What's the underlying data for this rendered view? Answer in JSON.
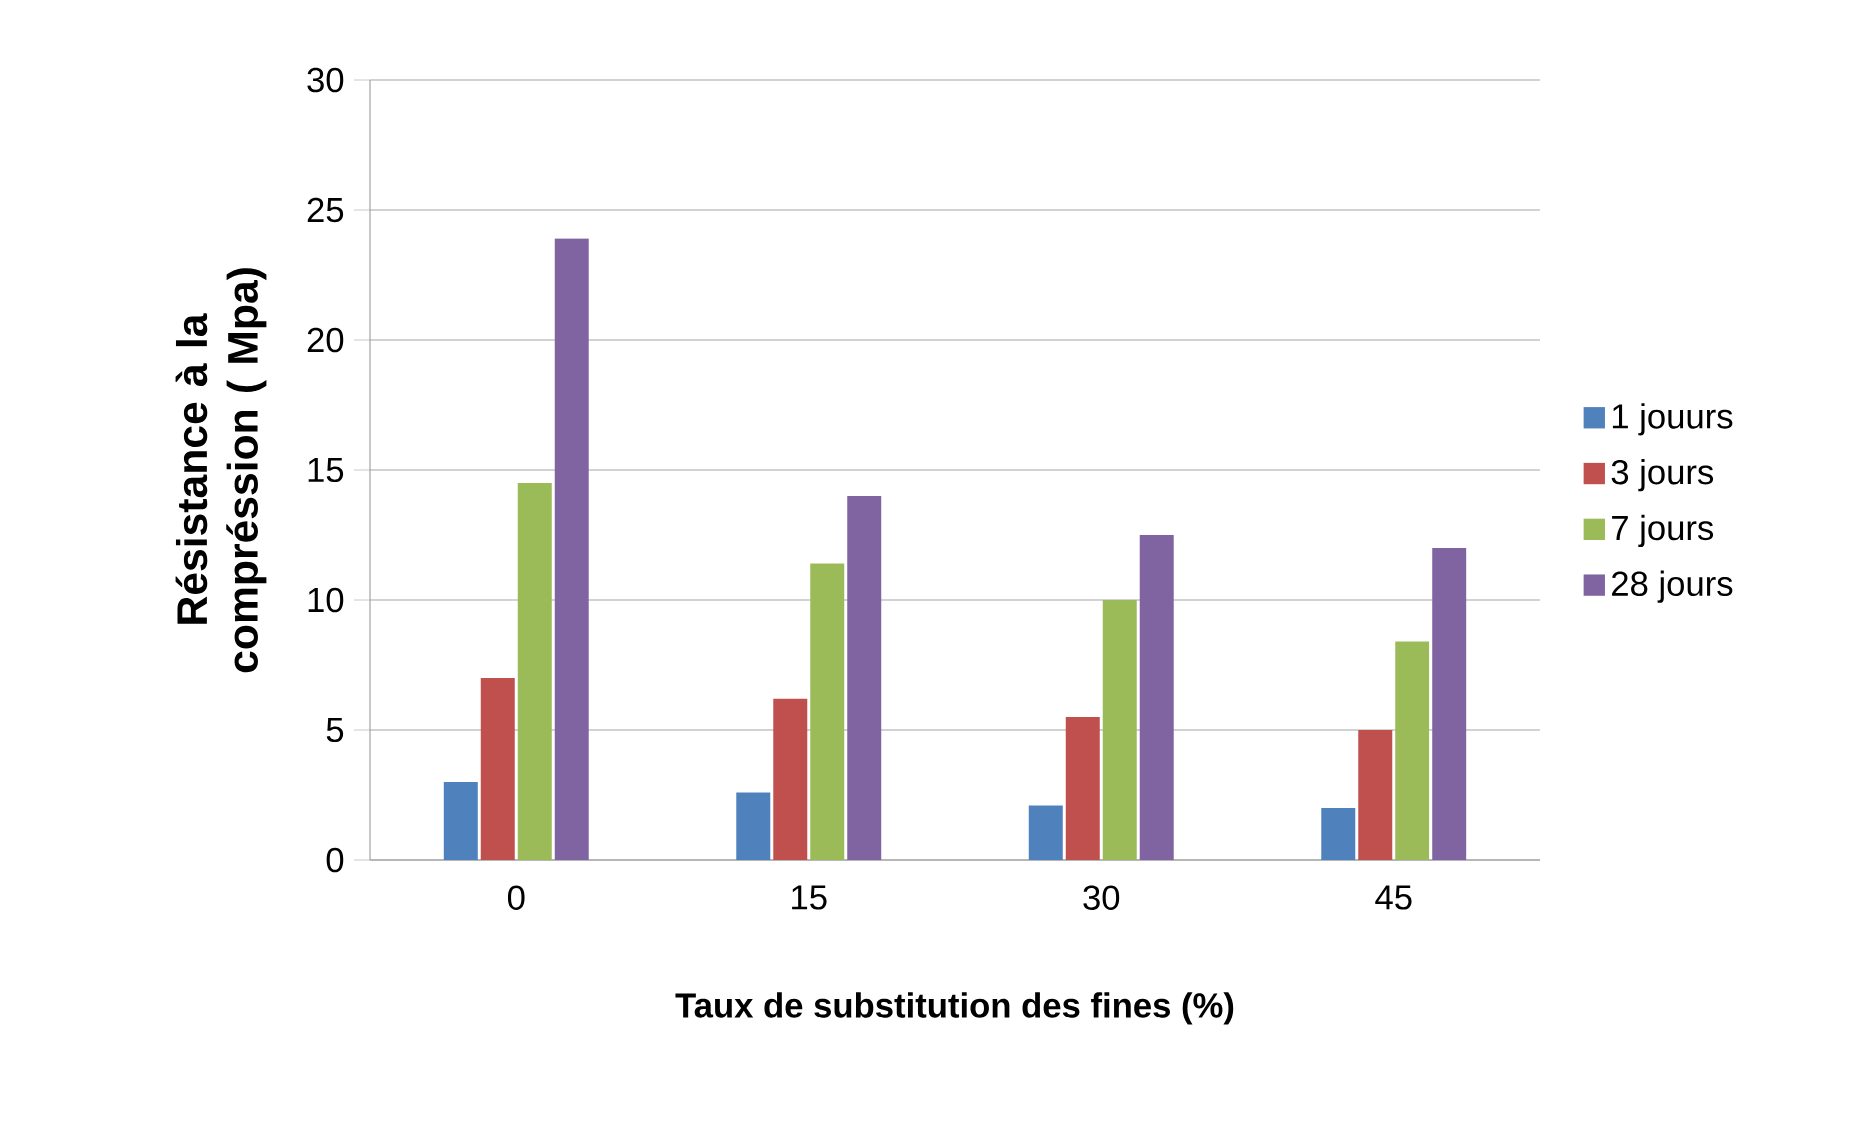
{
  "chart_data": {
    "type": "bar",
    "xlabel": "Taux de substitution des fines (%)",
    "ylabel": "Résistance à la compréssion ( Mpa)",
    "categories": [
      "0",
      "15",
      "30",
      "45"
    ],
    "series": [
      {
        "name": "1 jouurs",
        "color": "#4f81bd",
        "values": [
          3,
          2.6,
          2.1,
          2.0
        ]
      },
      {
        "name": "3 jours",
        "color": "#c0504d",
        "values": [
          7,
          6.2,
          5.5,
          5.0
        ]
      },
      {
        "name": "7 jours",
        "color": "#9bbb59",
        "values": [
          14.5,
          11.4,
          10,
          8.4
        ]
      },
      {
        "name": "28 jours",
        "color": "#8064a2",
        "values": [
          23.9,
          14,
          12.5,
          12
        ]
      }
    ],
    "ylim": [
      0,
      30
    ],
    "yticks": [
      0,
      5,
      10,
      15,
      20,
      25,
      30
    ],
    "grid": "y",
    "legend": "right"
  }
}
